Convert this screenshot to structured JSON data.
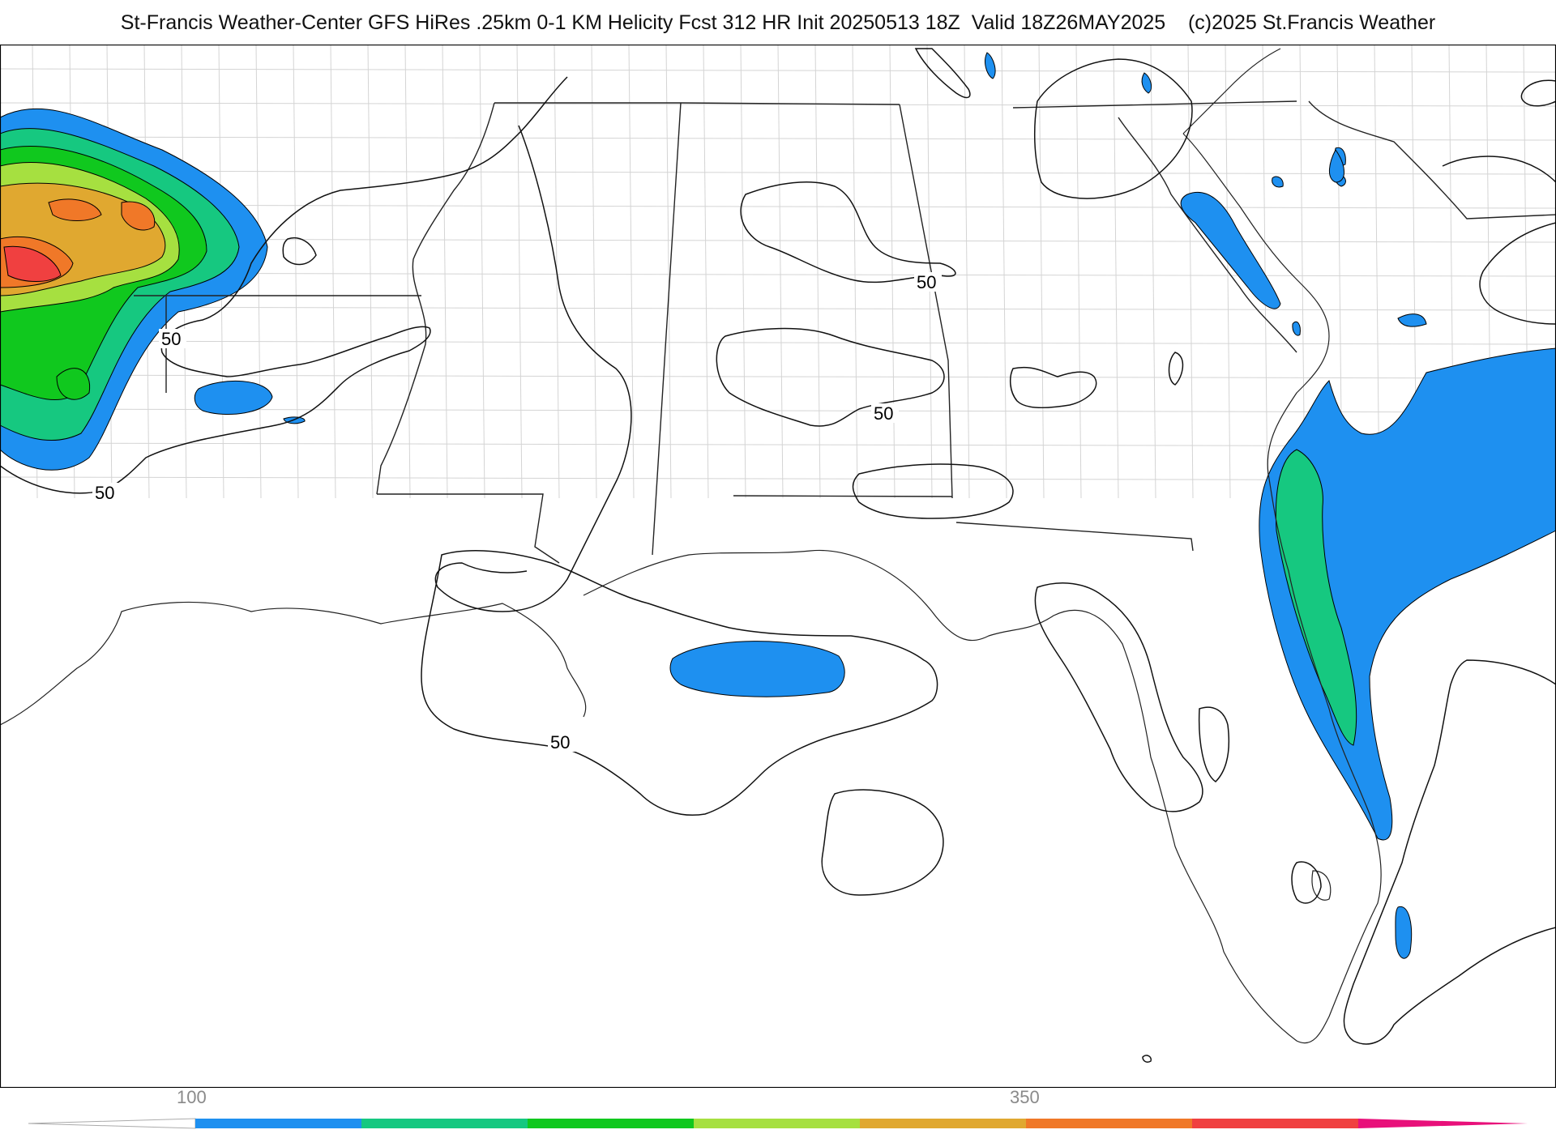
{
  "header": {
    "title": "St-Francis Weather-Center GFS HiRes .25km 0-1 KM Helicity Fcst 312 HR Init 20250513 18Z  Valid 18Z26MAY2025    (c)2025 St.Francis Weather"
  },
  "map": {
    "contour_labels": [
      "50",
      "50",
      "50",
      "50",
      "50"
    ],
    "fill_colors": {
      "c100": "#1e90f0",
      "c150": "#16c880",
      "c200": "#10c81e",
      "c250": "#a6e040",
      "c300": "#e0a830",
      "c350": "#f07828",
      "c400": "#f04040"
    }
  },
  "colorbar": {
    "tick_labels": [
      "100",
      "350"
    ],
    "colors": [
      "#1e90f0",
      "#16c880",
      "#10c81e",
      "#a6e040",
      "#e0a830",
      "#f07828",
      "#f04040",
      "#e8107a"
    ]
  }
}
